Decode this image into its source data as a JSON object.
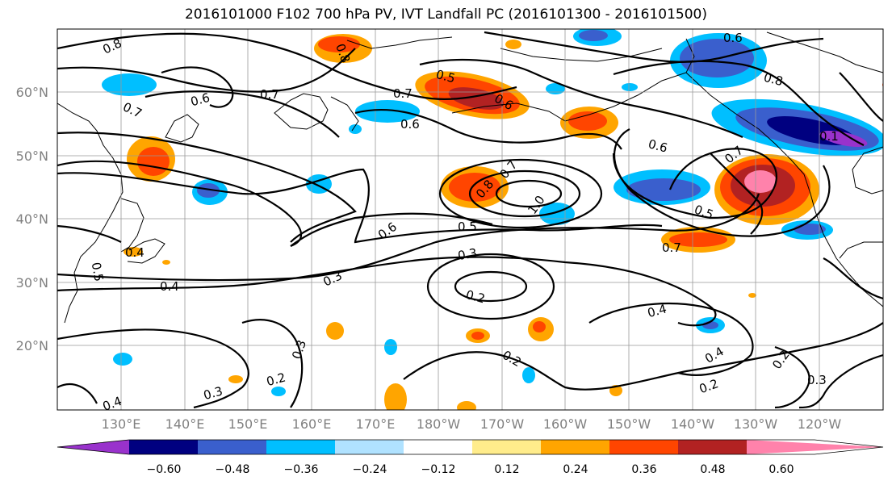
{
  "title": "2016101000 F102 700 hPa PV, IVT Landfall PC (2016101300 - 2016101500)",
  "lat_labels": [
    "60°N",
    "50°N",
    "40°N",
    "30°N",
    "20°N"
  ],
  "lon_labels": [
    "130°E",
    "140°E",
    "150°E",
    "160°E",
    "170°E",
    "180°W",
    "170°W",
    "160°W",
    "150°W",
    "140°W",
    "130°W",
    "120°W"
  ],
  "colorbar": {
    "colors": [
      "#9932cc",
      "#000080",
      "#3a5fcd",
      "#00bfff",
      "#b0e2ff",
      "#ffffff",
      "#ffec8b",
      "#ffa500",
      "#ff4500",
      "#b22222",
      "#ff82ab"
    ],
    "ticks": [
      "−0.60",
      "−0.48",
      "−0.36",
      "−0.24",
      "−0.12",
      "0.12",
      "0.24",
      "0.36",
      "0.48",
      "0.60"
    ]
  },
  "contour_labels": [
    {
      "text": "0.8"
    },
    {
      "text": "0.7"
    },
    {
      "text": "0.6"
    },
    {
      "text": "0.7"
    },
    {
      "text": "0.8"
    },
    {
      "text": "0.5"
    },
    {
      "text": "0.6"
    },
    {
      "text": "0.7"
    },
    {
      "text": "0.6"
    },
    {
      "text": "0.6"
    },
    {
      "text": "0.8"
    },
    {
      "text": "0.6"
    },
    {
      "text": "0.7"
    },
    {
      "text": "0.1"
    },
    {
      "text": "0.8"
    },
    {
      "text": "0.7"
    },
    {
      "text": "1.0"
    },
    {
      "text": "0.5"
    },
    {
      "text": "0.6"
    },
    {
      "text": "0.5"
    },
    {
      "text": "0.7"
    },
    {
      "text": "0.3"
    },
    {
      "text": "0.2"
    },
    {
      "text": "0.3"
    },
    {
      "text": "0.4"
    },
    {
      "text": "0.5"
    },
    {
      "text": "0.4"
    },
    {
      "text": "0.4"
    },
    {
      "text": "0.4"
    },
    {
      "text": "0.3"
    },
    {
      "text": "0.2"
    },
    {
      "text": "0.3"
    },
    {
      "text": "0.2"
    },
    {
      "text": "0.2"
    },
    {
      "text": "0.2"
    },
    {
      "text": "0.3"
    },
    {
      "text": "0.4"
    }
  ]
}
